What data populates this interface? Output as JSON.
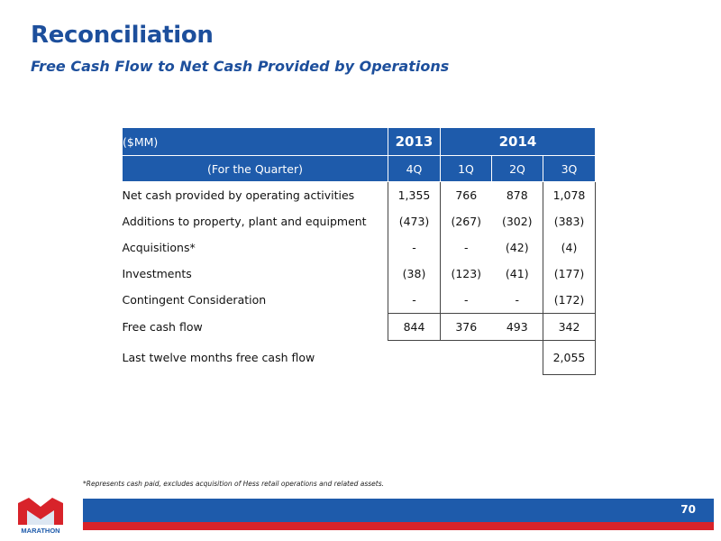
{
  "header": {
    "title": "Reconciliation",
    "subtitle": "Free Cash Flow to Net Cash Provided by Operations"
  },
  "table": {
    "unit_label": "($MM)",
    "year_2013": "2013",
    "year_2014": "2014",
    "period_label": "(For the Quarter)",
    "quarters": [
      "4Q",
      "1Q",
      "2Q",
      "3Q"
    ],
    "rows": [
      {
        "label": "Net cash provided by operating activities",
        "values": [
          "1,355",
          "766",
          "878",
          "1,078"
        ]
      },
      {
        "label": "Additions to property, plant and equipment",
        "values": [
          "(473)",
          "(267)",
          "(302)",
          "(383)"
        ]
      },
      {
        "label": "Acquisitions*",
        "values": [
          "-",
          "-",
          "(42)",
          "(4)"
        ]
      },
      {
        "label": "Investments",
        "values": [
          "(38)",
          "(123)",
          "(41)",
          "(177)"
        ]
      },
      {
        "label": "Contingent Consideration",
        "values": [
          "-",
          "-",
          "-",
          "(172)"
        ]
      }
    ],
    "free_cash_flow": {
      "label": "Free cash flow",
      "values": [
        "844",
        "376",
        "493",
        "342"
      ]
    },
    "ltm": {
      "label": "Last twelve months free cash flow",
      "value": "2,055"
    }
  },
  "footnote": "*Represents cash paid, excludes acquisition of Hess retail operations and related assets.",
  "footer": {
    "page_number": "70",
    "logo_text": "MARATHON",
    "colors": {
      "blue": "#1e5bab",
      "red": "#d8232a"
    }
  }
}
